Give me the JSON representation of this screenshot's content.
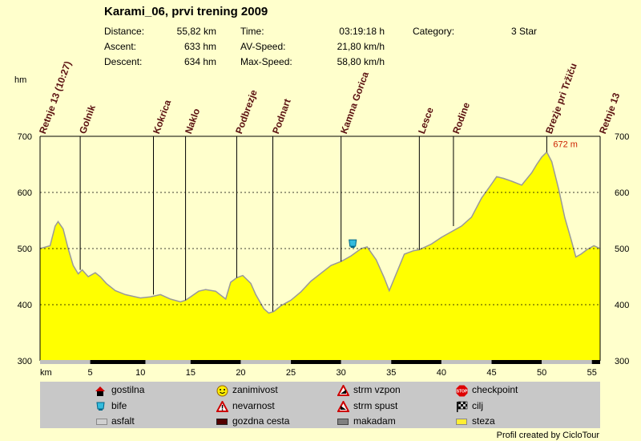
{
  "title": "Karami_06, prvi trening 2009",
  "stats": {
    "distance_label": "Distance:",
    "distance_value": "55,82 km",
    "ascent_label": "Ascent:",
    "ascent_value": "633 hm",
    "descent_label": "Descent:",
    "descent_value": "634 hm",
    "time_label": "Time:",
    "time_value": "03:19:18 h",
    "avspeed_label": "AV-Speed:",
    "avspeed_value": "21,80 km/h",
    "maxspeed_label": "Max-Speed:",
    "maxspeed_value": "58,80 km/h",
    "category_label": "Category:",
    "category_value": "3 Star"
  },
  "y_unit": "hm",
  "x_unit": "km",
  "credit": "Profil created by CicloTour",
  "colors": {
    "profile_fill": "#FFFF00",
    "profile_stroke": "#999999",
    "background": "#FFFFCC",
    "waypoint_text": "#5a1010",
    "max_label": "#cc2200"
  },
  "legend": [
    {
      "icon": "house-icon",
      "label": "gostilna"
    },
    {
      "icon": "smiley-icon",
      "label": "zanimivost"
    },
    {
      "icon": "steep-climb-icon",
      "label": "strm vzpon"
    },
    {
      "icon": "stop-icon",
      "label": "checkpoint"
    },
    {
      "icon": "cup-icon",
      "label": "bife"
    },
    {
      "icon": "warning-icon",
      "label": "nevarnost"
    },
    {
      "icon": "steep-descent-icon",
      "label": "strm spust"
    },
    {
      "icon": "checkered-flag-icon",
      "label": "cilj"
    },
    {
      "icon": "asphalt-swatch-icon",
      "label": "asfalt"
    },
    {
      "icon": "forest-road-swatch-icon",
      "label": "gozdna cesta"
    },
    {
      "icon": "gravel-swatch-icon",
      "label": "makadam"
    },
    {
      "icon": "trail-swatch-icon",
      "label": "steza"
    }
  ],
  "chart_data": {
    "type": "area",
    "xlabel": "km",
    "ylabel": "hm",
    "xlim": [
      0,
      55.82
    ],
    "ylim": [
      300,
      700
    ],
    "x_ticks": [
      5,
      10,
      15,
      20,
      25,
      30,
      35,
      40,
      45,
      50,
      55
    ],
    "y_ticks": [
      300,
      400,
      500,
      600,
      700
    ],
    "grid": true,
    "max_label": "672 m",
    "max_point": {
      "x": 50.5,
      "y": 672
    },
    "waypoints": [
      {
        "name": "Retnje 13 (10:27)",
        "km": 0
      },
      {
        "name": "Golnik",
        "km": 4.0
      },
      {
        "name": "Kokrica",
        "km": 11.3
      },
      {
        "name": "Naklo",
        "km": 14.5
      },
      {
        "name": "Podbrezje",
        "km": 19.6
      },
      {
        "name": "Podnart",
        "km": 23.2
      },
      {
        "name": "Kamna Gorica",
        "km": 30.0
      },
      {
        "name": "Lesce",
        "km": 37.8
      },
      {
        "name": "Rodine",
        "km": 41.2
      },
      {
        "name": "Brezje pri Tržiču",
        "km": 50.5
      },
      {
        "name": "Retnje 13",
        "km": 55.82
      }
    ],
    "poi": [
      {
        "type": "bife",
        "km": 31.2,
        "elevation": 497
      }
    ],
    "surface_segments": [
      {
        "type": "asfalt",
        "from": 0,
        "to": 5.0
      },
      {
        "type": "gozdna cesta",
        "from": 5.0,
        "to": 10.5
      },
      {
        "type": "asfalt",
        "from": 10.5,
        "to": 15.0
      },
      {
        "type": "gozdna cesta",
        "from": 15.0,
        "to": 20.0
      },
      {
        "type": "asfalt",
        "from": 20.0,
        "to": 25.0
      },
      {
        "type": "gozdna cesta",
        "from": 25.0,
        "to": 30.0
      },
      {
        "type": "asfalt",
        "from": 30.0,
        "to": 35.0
      },
      {
        "type": "gozdna cesta",
        "from": 35.0,
        "to": 40.0
      },
      {
        "type": "asfalt",
        "from": 40.0,
        "to": 45.0
      },
      {
        "type": "gozdna cesta",
        "from": 45.0,
        "to": 50.0
      },
      {
        "type": "asfalt",
        "from": 50.0,
        "to": 55.0
      },
      {
        "type": "gozdna cesta",
        "from": 55.0,
        "to": 55.82
      }
    ],
    "series": [
      {
        "x": [
          0,
          1.0,
          1.5,
          1.8,
          2.3,
          2.8,
          3.3,
          3.8,
          4.2,
          4.8,
          5.5,
          6.0,
          6.6,
          7.5,
          8.5,
          10.0,
          11.0,
          12.0,
          13.0,
          14.0,
          14.5,
          15.0,
          15.8,
          16.5,
          17.5,
          18.5,
          19.0,
          19.6,
          20.2,
          21.0,
          21.5,
          22.3,
          22.8,
          23.3,
          24.0,
          25.0,
          26.0,
          27.0,
          28.0,
          29.0,
          30.0,
          31.0,
          32.0,
          32.6,
          33.5,
          34.3,
          34.8,
          35.5,
          36.3,
          37.2,
          37.8,
          39.0,
          40.0,
          41.0,
          42.0,
          43.0,
          44.0,
          45.0,
          45.5,
          46.2,
          47.0,
          48.0,
          49.0,
          49.5,
          50.0,
          50.5,
          51.0,
          51.7,
          52.3,
          52.9,
          53.4,
          53.9,
          54.5,
          55.2,
          55.82
        ],
        "y": [
          500,
          505,
          540,
          548,
          535,
          500,
          470,
          455,
          462,
          450,
          457,
          450,
          438,
          425,
          418,
          412,
          414,
          418,
          410,
          405,
          408,
          414,
          424,
          427,
          424,
          410,
          440,
          448,
          452,
          438,
          418,
          393,
          385,
          388,
          398,
          408,
          423,
          442,
          456,
          470,
          477,
          487,
          500,
          503,
          480,
          448,
          425,
          455,
          490,
          496,
          498,
          508,
          520,
          530,
          540,
          556,
          590,
          615,
          628,
          625,
          620,
          613,
          635,
          650,
          663,
          672,
          655,
          605,
          555,
          518,
          485,
          490,
          498,
          505,
          500
        ]
      }
    ]
  }
}
